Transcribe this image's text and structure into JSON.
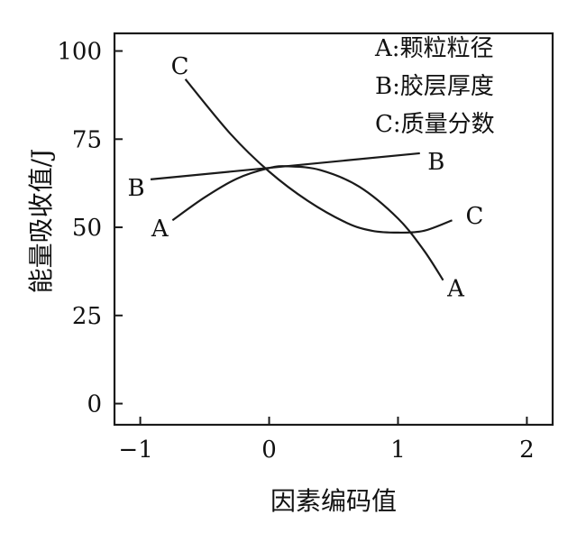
{
  "chart_data": {
    "type": "line",
    "xlabel": "因素编码值",
    "ylabel": "能量吸收值/J",
    "xlim": [
      -1.2,
      2.2
    ],
    "ylim": [
      -6,
      105
    ],
    "xticks": [
      -1,
      0,
      1,
      2
    ],
    "yticks": [
      0,
      25,
      50,
      75,
      100
    ],
    "grid": false,
    "legend_position": "top-right",
    "legend": [
      "A:颗粒粒径",
      "B:胶层厚度",
      "C:质量分数"
    ],
    "series": [
      {
        "name": "A",
        "x": [
          -0.75,
          -0.5,
          -0.25,
          0.0,
          0.15,
          0.4,
          0.7,
          1.0,
          1.2,
          1.35
        ],
        "y": [
          52,
          58.5,
          63.8,
          66.8,
          67.3,
          66.2,
          61.5,
          52.5,
          43.5,
          35
        ]
      },
      {
        "name": "B",
        "x": [
          -0.92,
          1.17
        ],
        "y": [
          63.6,
          71
        ]
      },
      {
        "name": "C",
        "x": [
          -0.65,
          -0.3,
          0.0,
          0.3,
          0.6,
          0.8,
          1.0,
          1.2,
          1.42
        ],
        "y": [
          92,
          76.5,
          65.8,
          57.5,
          51.3,
          49,
          48.5,
          49,
          52
        ]
      }
    ],
    "curve_labels": [
      {
        "text": "C",
        "series": "C",
        "end": "start"
      },
      {
        "text": "B",
        "series": "B",
        "end": "start"
      },
      {
        "text": "B",
        "series": "B",
        "end": "end"
      },
      {
        "text": "A",
        "series": "A",
        "end": "start"
      },
      {
        "text": "A",
        "series": "A",
        "end": "end"
      },
      {
        "text": "C",
        "series": "C",
        "end": "end"
      }
    ]
  }
}
